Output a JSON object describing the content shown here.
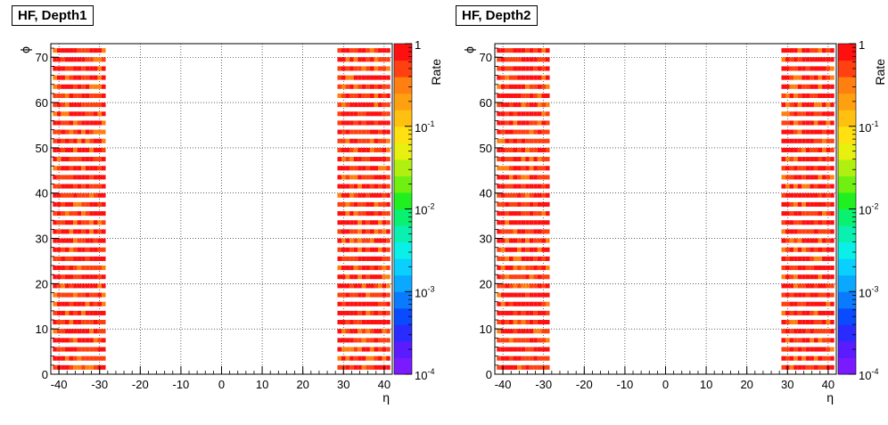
{
  "chart_data": [
    {
      "type": "heatmap",
      "title": "HF, Depth1",
      "xlabel": "η",
      "ylabel": "ϕ",
      "zlabel": "Rate",
      "xlim": [
        -42,
        42
      ],
      "ylim": [
        0,
        73
      ],
      "zlim": [
        0.0001,
        1
      ],
      "zscale": "log",
      "x_ticks": [
        "-40",
        "-30",
        "-20",
        "-10",
        "0",
        "10",
        "20",
        "30",
        "40"
      ],
      "y_ticks": [
        "0",
        "10",
        "20",
        "30",
        "40",
        "50",
        "60",
        "70"
      ],
      "z_ticks": [
        {
          "base": "10",
          "exp": "-4"
        },
        {
          "base": "10",
          "exp": "-3"
        },
        {
          "base": "10",
          "exp": "-2"
        },
        {
          "base": "10",
          "exp": "-1"
        },
        {
          "base": "1",
          "exp": ""
        }
      ],
      "grid": true,
      "eta_bins_negative": [
        -41,
        -29
      ],
      "eta_bins_positive": [
        29,
        41
      ],
      "phi_bins": [
        1,
        3,
        5,
        7,
        9,
        11,
        13,
        15,
        17,
        19,
        21,
        23,
        25,
        27,
        29,
        31,
        33,
        35,
        37,
        39,
        41,
        43,
        45,
        47,
        49,
        51,
        53,
        55,
        57,
        59,
        61,
        63,
        65,
        67,
        69,
        71
      ],
      "rate_range": [
        0.3,
        1.0
      ],
      "seed": 7
    },
    {
      "type": "heatmap",
      "title": "HF, Depth2",
      "xlabel": "η",
      "ylabel": "ϕ",
      "zlabel": "Rate",
      "xlim": [
        -42,
        42
      ],
      "ylim": [
        0,
        73
      ],
      "zlim": [
        0.0001,
        1
      ],
      "zscale": "log",
      "x_ticks": [
        "-40",
        "-30",
        "-20",
        "-10",
        "0",
        "10",
        "20",
        "30",
        "40"
      ],
      "y_ticks": [
        "0",
        "10",
        "20",
        "30",
        "40",
        "50",
        "60",
        "70"
      ],
      "z_ticks": [
        {
          "base": "10",
          "exp": "-4"
        },
        {
          "base": "10",
          "exp": "-3"
        },
        {
          "base": "10",
          "exp": "-2"
        },
        {
          "base": "10",
          "exp": "-1"
        },
        {
          "base": "1",
          "exp": ""
        }
      ],
      "grid": true,
      "eta_bins_negative": [
        -41,
        -29
      ],
      "eta_bins_positive": [
        29,
        41
      ],
      "phi_bins": [
        1,
        3,
        5,
        7,
        9,
        11,
        13,
        15,
        17,
        19,
        21,
        23,
        25,
        27,
        29,
        31,
        33,
        35,
        37,
        39,
        41,
        43,
        45,
        47,
        49,
        51,
        53,
        55,
        57,
        59,
        61,
        63,
        65,
        67,
        69,
        71
      ],
      "rate_range": [
        0.3,
        1.0
      ],
      "seed": 13
    }
  ]
}
